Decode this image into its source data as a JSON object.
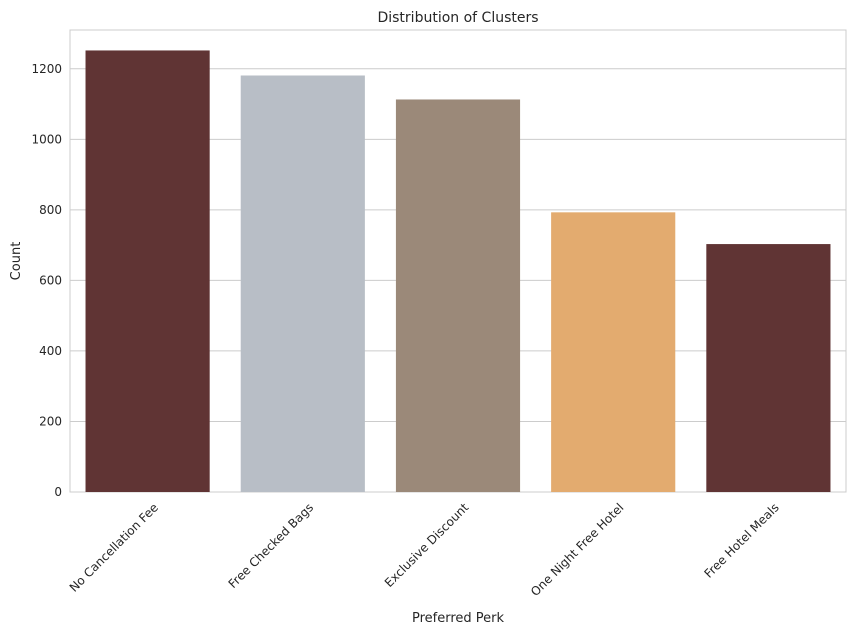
{
  "chart_data": {
    "type": "bar",
    "title": "Distribution of Clusters",
    "xlabel": "Preferred Perk",
    "ylabel": "Count",
    "categories": [
      "No Cancellation Fee",
      "Free Checked Bags",
      "Exclusive Discount",
      "One Night Free Hotel",
      "Free Hotel Meals"
    ],
    "values": [
      1252,
      1181,
      1113,
      793,
      703
    ],
    "colors": [
      "#603434",
      "#b8bec6",
      "#9b8979",
      "#e3ab6f",
      "#603434"
    ],
    "ylim": [
      0,
      1310
    ],
    "yticks": [
      0,
      200,
      400,
      600,
      800,
      1000,
      1200
    ],
    "grid": true,
    "grid_axis": "y"
  }
}
